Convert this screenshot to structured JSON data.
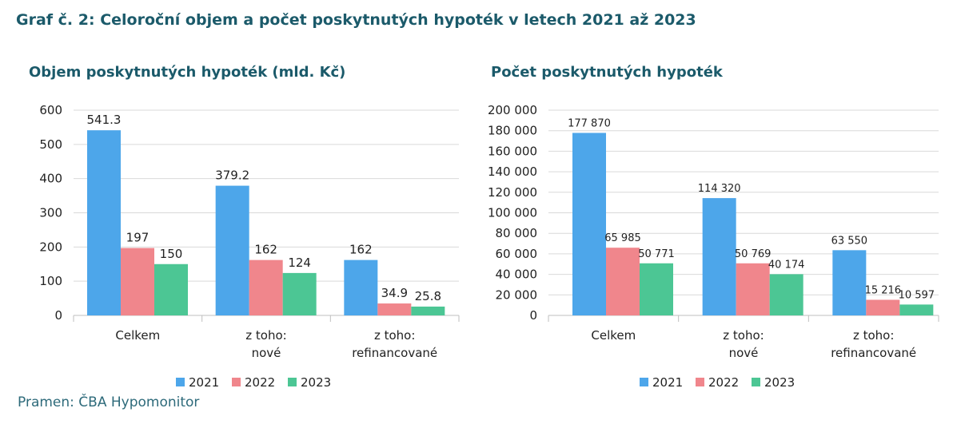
{
  "page": {
    "title": "Graf č. 2: Celoroční objem a počet poskytnutých hypoték v letech 2021 až 2023",
    "source": "Pramen: ČBA Hypomonitor"
  },
  "chart_data": [
    {
      "type": "bar",
      "title": "Objem poskytnutých hypoték (mld. Kč)",
      "categories": [
        [
          "Celkem"
        ],
        [
          "z toho:",
          "nové"
        ],
        [
          "z toho:",
          "refinancované"
        ]
      ],
      "series": [
        {
          "name": "2021",
          "color": "#4da6ea",
          "values": [
            541.3,
            379.2,
            162
          ],
          "labels": [
            "541.3",
            "379.2",
            "162"
          ]
        },
        {
          "name": "2022",
          "color": "#f0868c",
          "values": [
            197,
            162,
            34.9
          ],
          "labels": [
            "197",
            "162",
            "34.9"
          ]
        },
        {
          "name": "2023",
          "color": "#4cc694",
          "values": [
            150,
            124,
            25.8
          ],
          "labels": [
            "150",
            "124",
            "25.8"
          ]
        }
      ],
      "ylim": [
        0,
        600
      ],
      "yticks": [
        0,
        100,
        200,
        300,
        400,
        500,
        600
      ],
      "ytick_labels": [
        "0",
        "100",
        "200",
        "300",
        "400",
        "500",
        "600"
      ],
      "grid": true,
      "legend": "bottom"
    },
    {
      "type": "bar",
      "title": "Počet poskytnutých hypoték",
      "categories": [
        [
          "Celkem"
        ],
        [
          "z toho:",
          "nové"
        ],
        [
          "z toho:",
          "refinancované"
        ]
      ],
      "series": [
        {
          "name": "2021",
          "color": "#4da6ea",
          "values": [
            177870,
            114320,
            63550
          ],
          "labels": [
            "177 870",
            "114 320",
            "63 550"
          ]
        },
        {
          "name": "2022",
          "color": "#f0868c",
          "values": [
            65985,
            50769,
            15216
          ],
          "labels": [
            "65 985",
            "50 769",
            "15 216"
          ]
        },
        {
          "name": "2023",
          "color": "#4cc694",
          "values": [
            50771,
            40174,
            10597
          ],
          "labels": [
            "50 771",
            "40 174",
            "10 597"
          ]
        }
      ],
      "ylim": [
        0,
        200000
      ],
      "yticks": [
        0,
        20000,
        40000,
        60000,
        80000,
        100000,
        120000,
        140000,
        160000,
        180000,
        200000
      ],
      "ytick_labels": [
        "0",
        "20 000",
        "40 000",
        "60 000",
        "80 000",
        "100 000",
        "120 000",
        "140 000",
        "160 000",
        "180 000",
        "200 000"
      ],
      "grid": true,
      "legend": "bottom"
    }
  ]
}
